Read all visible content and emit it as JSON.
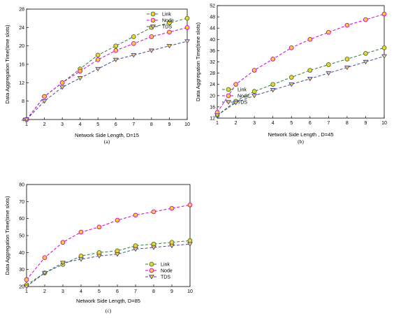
{
  "chart_data": [
    {
      "type": "line",
      "caption": "(a)",
      "xlabel": "Network Side Length, D=15",
      "ylabel": "Data Aggregation Time(time slots)",
      "xlim": [
        1,
        10
      ],
      "ylim": [
        4,
        28
      ],
      "xticks": [
        1,
        2,
        3,
        4,
        5,
        6,
        7,
        8,
        9,
        10
      ],
      "yticks": [
        4,
        8,
        12,
        16,
        20,
        24,
        28
      ],
      "grid": false,
      "legend": "top-right",
      "x": [
        1,
        2,
        3,
        4,
        5,
        6,
        7,
        8,
        9,
        10
      ],
      "series": [
        {
          "name": "Link",
          "color": "#2e7d2e",
          "marker": "circle",
          "values": [
            4,
            9,
            12,
            15,
            18,
            20,
            22,
            24,
            25,
            26
          ]
        },
        {
          "name": "Node",
          "color": "#cc00cc",
          "marker": "circle",
          "values": [
            4,
            9,
            12,
            14.5,
            17,
            19,
            20.5,
            22,
            23,
            24
          ]
        },
        {
          "name": "TDS",
          "color": "#4a4a9a",
          "marker": "triangle-down",
          "values": [
            4,
            8,
            11,
            13,
            15,
            17,
            18,
            19,
            20,
            21
          ]
        }
      ]
    },
    {
      "type": "line",
      "caption": "(b)",
      "xlabel": "Network Side Length , D=45",
      "ylabel": "Data Aggregation Time(time slots)",
      "xlim": [
        1,
        10
      ],
      "ylim": [
        12,
        52
      ],
      "xticks": [
        1,
        2,
        3,
        4,
        5,
        6,
        7,
        8,
        9,
        10
      ],
      "yticks": [
        12,
        16,
        20,
        24,
        28,
        32,
        36,
        40,
        44,
        48,
        52
      ],
      "grid": false,
      "legend": "bottom-left",
      "x": [
        1,
        2,
        3,
        4,
        5,
        6,
        7,
        8,
        9,
        10
      ],
      "series": [
        {
          "name": "Link",
          "color": "#2e7d2e",
          "marker": "circle",
          "values": [
            13,
            18,
            21.5,
            24,
            26.5,
            29,
            31,
            33,
            35,
            37
          ]
        },
        {
          "name": "Node",
          "color": "#cc00cc",
          "marker": "circle",
          "values": [
            14,
            24,
            29,
            33,
            37,
            40,
            42.5,
            45,
            47,
            49
          ]
        },
        {
          "name": "TDS",
          "color": "#4a4a9a",
          "marker": "triangle-down",
          "values": [
            13,
            17.5,
            20,
            22,
            24,
            26,
            28,
            30,
            32,
            34
          ]
        }
      ]
    },
    {
      "type": "line",
      "caption": "(c)",
      "xlabel": "Network Side Length, D=85",
      "ylabel": "Data Aggregation Time(time slots)",
      "xlim": [
        1,
        10
      ],
      "ylim": [
        20,
        80
      ],
      "xticks": [
        1,
        2,
        3,
        4,
        5,
        6,
        7,
        8,
        9,
        10
      ],
      "yticks": [
        20,
        30,
        40,
        50,
        60,
        70,
        80
      ],
      "grid": false,
      "legend": "bottom-center",
      "x": [
        1,
        2,
        3,
        4,
        5,
        6,
        7,
        8,
        9,
        10
      ],
      "series": [
        {
          "name": "Link",
          "color": "#2e7d2e",
          "marker": "circle",
          "values": [
            21,
            28,
            33,
            38,
            40,
            41,
            44,
            45,
            46,
            47
          ]
        },
        {
          "name": "Node",
          "color": "#cc00cc",
          "marker": "circle",
          "values": [
            24,
            37,
            46,
            52,
            55,
            59,
            62,
            64,
            66,
            68
          ]
        },
        {
          "name": "TDS",
          "color": "#4a4a9a",
          "marker": "triangle-down",
          "values": [
            20,
            28,
            34,
            36,
            38,
            39,
            42,
            43,
            44,
            45
          ]
        }
      ]
    }
  ]
}
